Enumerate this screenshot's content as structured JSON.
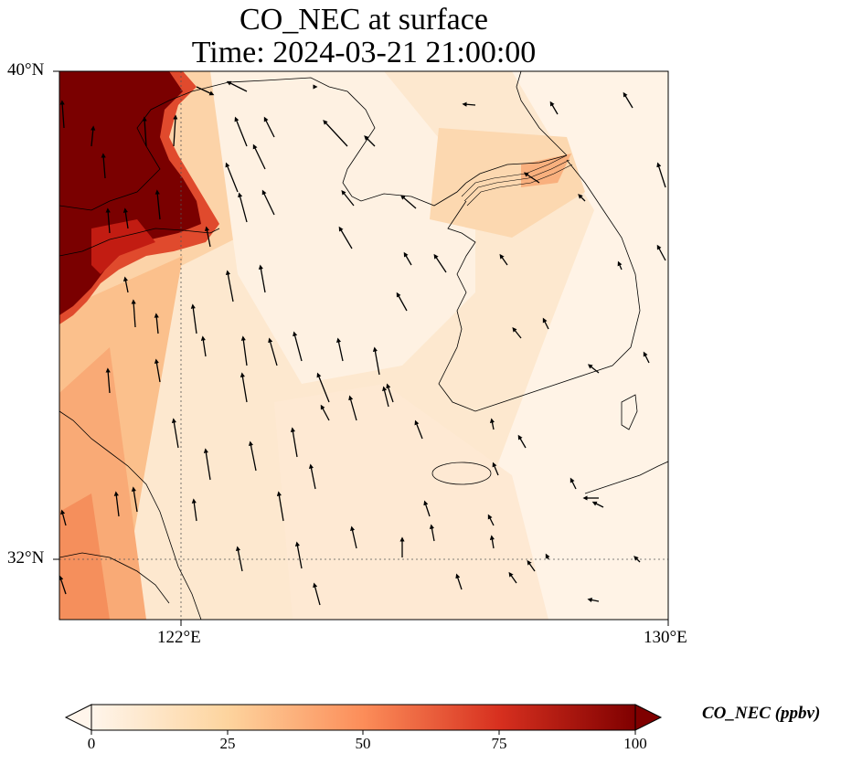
{
  "title": {
    "line1": "CO_NEC at surface",
    "line2": "Time: 2024-03-21 21:00:00"
  },
  "axes": {
    "lat_ticks": [
      "40°N",
      "32°N"
    ],
    "lon_ticks": [
      "122°E",
      "130°E"
    ],
    "lon_range": [
      120,
      130
    ],
    "lat_range": [
      31,
      40
    ],
    "gridlines": "dotted"
  },
  "colorbar": {
    "label": "CO_NEC (ppbv)",
    "ticks": [
      "0",
      "25",
      "50",
      "75",
      "100"
    ],
    "range": [
      0,
      100
    ],
    "extend": "both",
    "colormap": "OrRd-like",
    "colors": [
      "#fff6ec",
      "#fde3c0",
      "#fdc78d",
      "#f98e52",
      "#e34a2c",
      "#b00000",
      "#7a0000"
    ]
  },
  "field": {
    "variable": "CO_NEC",
    "units": "ppbv",
    "level": "surface",
    "time": "2024-03-21 21:00:00",
    "vectors": "wind arrows"
  }
}
